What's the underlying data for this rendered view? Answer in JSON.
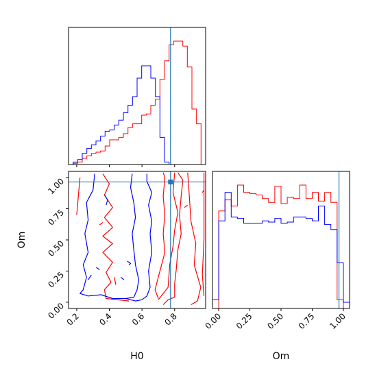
{
  "chart_data": {
    "type": "corner",
    "parameters": [
      "H0",
      "Om"
    ],
    "truth": {
      "H0": 0.775,
      "Om": 0.965
    },
    "colors": {
      "run_red": "#ff0000",
      "run_blue": "#0000ff",
      "truth": "#1f77b4"
    },
    "axes": {
      "H0": {
        "label": "H0",
        "range": [
          0.15,
          0.99
        ],
        "ticks": [
          "0.2",
          "0.4",
          "0.6",
          "0.8"
        ],
        "tick_values": [
          0.2,
          0.4,
          0.6,
          0.8
        ]
      },
      "Om": {
        "label": "Om",
        "range": [
          -0.05,
          1.05
        ],
        "ticks": [
          "0.00",
          "0.25",
          "0.50",
          "0.75",
          "1.00"
        ],
        "tick_values": [
          0.0,
          0.25,
          0.5,
          0.75,
          1.0
        ]
      }
    },
    "hist_H0": {
      "bin_width": 0.028,
      "bin_centers": [
        0.164,
        0.192,
        0.22,
        0.248,
        0.276,
        0.304,
        0.332,
        0.36,
        0.388,
        0.416,
        0.444,
        0.472,
        0.5,
        0.528,
        0.556,
        0.584,
        0.612,
        0.64,
        0.668,
        0.696,
        0.724,
        0.752,
        0.78,
        0.808,
        0.836,
        0.864,
        0.892,
        0.92,
        0.948,
        0.976
      ],
      "series": [
        {
          "color": "#ff0000",
          "values": [
            0,
            0.01,
            0.02,
            0.05,
            0.07,
            0.09,
            0.1,
            0.11,
            0.15,
            0.2,
            0.2,
            0.22,
            0.25,
            0.3,
            0.33,
            0.33,
            0.4,
            0.41,
            0.48,
            0.53,
            0.69,
            0.84,
            0.97,
            1.0,
            1.0,
            0.96,
            0.79,
            0.45,
            0.33,
            0
          ]
        },
        {
          "color": "#0000ff",
          "values": [
            0,
            0.02,
            0.04,
            0.09,
            0.13,
            0.16,
            0.19,
            0.23,
            0.27,
            0.28,
            0.32,
            0.36,
            0.42,
            0.48,
            0.55,
            0.7,
            0.8,
            0.8,
            0.7,
            0.55,
            0.22,
            0.02,
            0,
            0,
            0,
            0,
            0,
            0,
            0,
            0
          ]
        }
      ]
    },
    "hist_Om": {
      "bin_width": 0.05,
      "bin_centers": [
        -0.025,
        0.025,
        0.075,
        0.125,
        0.175,
        0.225,
        0.275,
        0.325,
        0.375,
        0.425,
        0.475,
        0.525,
        0.575,
        0.625,
        0.675,
        0.725,
        0.775,
        0.825,
        0.875,
        0.925,
        0.975,
        1.025
      ],
      "series": [
        {
          "color": "#ff0000",
          "values": [
            0,
            0.79,
            0.88,
            0.83,
            1.0,
            0.94,
            0.93,
            0.92,
            0.89,
            0.86,
            0.99,
            0.85,
            0.9,
            0.89,
            1.0,
            0.89,
            0.94,
            0.87,
            0.94,
            0.86,
            0.07,
            0
          ]
        },
        {
          "color": "#0000ff",
          "values": [
            0.07,
            0.71,
            0.94,
            0.74,
            0.73,
            0.69,
            0.69,
            0.69,
            0.71,
            0.7,
            0.73,
            0.69,
            0.7,
            0.74,
            0.74,
            0.73,
            0.71,
            0.83,
            0.68,
            0.64,
            0.37,
            0.05
          ]
        }
      ]
    },
    "contours": [
      {
        "color": "#ff0000",
        "paths": [
          [
            [
              0.73,
              -0.02
            ],
            [
              0.76,
              0.02
            ],
            [
              0.8,
              0.04
            ],
            [
              0.8,
              0.15
            ],
            [
              0.81,
              0.26
            ],
            [
              0.82,
              0.42
            ],
            [
              0.84,
              0.55
            ],
            [
              0.83,
              0.7
            ],
            [
              0.84,
              0.85
            ],
            [
              0.85,
              0.98
            ],
            [
              0.82,
              1.04
            ]
          ],
          [
            [
              0.8,
              1.04
            ],
            [
              0.79,
              0.88
            ],
            [
              0.82,
              0.72
            ],
            [
              0.8,
              0.58
            ],
            [
              0.79,
              0.45
            ],
            [
              0.77,
              0.3
            ],
            [
              0.76,
              0.12
            ],
            [
              0.7,
              0.02
            ]
          ],
          [
            [
              0.7,
              0.03
            ],
            [
              0.68,
              0.1
            ],
            [
              0.71,
              0.25
            ],
            [
              0.74,
              0.4
            ],
            [
              0.73,
              0.55
            ],
            [
              0.74,
              0.7
            ],
            [
              0.73,
              0.85
            ],
            [
              0.74,
              1.0
            ],
            [
              0.73,
              1.04
            ]
          ],
          [
            [
              0.88,
              1.04
            ],
            [
              0.89,
              0.85
            ],
            [
              0.9,
              0.65
            ],
            [
              0.93,
              0.47
            ],
            [
              0.92,
              0.3
            ],
            [
              0.96,
              0.12
            ],
            [
              0.94,
              0.01
            ],
            [
              0.9,
              -0.02
            ]
          ],
          [
            [
              0.98,
              0.05
            ],
            [
              0.97,
              0.22
            ],
            [
              0.98,
              0.5
            ],
            [
              0.98,
              1.04
            ]
          ],
          [
            [
              0.22,
              1.0
            ],
            [
              0.2,
              0.7
            ]
          ],
          [
            [
              0.36,
              1.03
            ],
            [
              0.4,
              0.95
            ],
            [
              0.37,
              0.86
            ],
            [
              0.42,
              0.76
            ],
            [
              0.37,
              0.68
            ],
            [
              0.42,
              0.6
            ],
            [
              0.36,
              0.53
            ],
            [
              0.42,
              0.47
            ],
            [
              0.36,
              0.4
            ],
            [
              0.42,
              0.32
            ],
            [
              0.38,
              0.24
            ],
            [
              0.41,
              0.16
            ],
            [
              0.37,
              0.1
            ],
            [
              0.38,
              0.03
            ],
            [
              0.45,
              0.02
            ],
            [
              0.52,
              0.01
            ]
          ],
          [
            [
              0.43,
              0.2
            ],
            [
              0.44,
              0.14
            ]
          ],
          [
            [
              0.34,
              0.62
            ],
            [
              0.36,
              0.64
            ]
          ],
          [
            [
              0.86,
              0.76
            ],
            [
              0.88,
              0.78
            ]
          ],
          [
            [
              0.97,
              0.88
            ],
            [
              0.98,
              0.9
            ]
          ]
        ]
      },
      {
        "color": "#0000ff",
        "paths": [
          [
            [
              0.31,
              1.03
            ],
            [
              0.3,
              0.9
            ],
            [
              0.26,
              0.8
            ],
            [
              0.27,
              0.66
            ],
            [
              0.25,
              0.55
            ],
            [
              0.27,
              0.4
            ],
            [
              0.24,
              0.3
            ],
            [
              0.26,
              0.2
            ],
            [
              0.24,
              0.1
            ],
            [
              0.22,
              0.07
            ],
            [
              0.27,
              0.05
            ],
            [
              0.35,
              0.06
            ],
            [
              0.42,
              0.03
            ],
            [
              0.5,
              0.03
            ],
            [
              0.56,
              0.01
            ],
            [
              0.6,
              0.02
            ],
            [
              0.63,
              0.05
            ],
            [
              0.65,
              0.12
            ],
            [
              0.64,
              0.25
            ],
            [
              0.66,
              0.4
            ],
            [
              0.65,
              0.55
            ],
            [
              0.66,
              0.65
            ],
            [
              0.64,
              0.78
            ],
            [
              0.66,
              0.88
            ],
            [
              0.63,
              0.97
            ],
            [
              0.63,
              1.03
            ]
          ],
          [
            [
              0.54,
              1.03
            ],
            [
              0.53,
              0.92
            ],
            [
              0.55,
              0.8
            ],
            [
              0.56,
              0.68
            ],
            [
              0.54,
              0.55
            ],
            [
              0.55,
              0.42
            ],
            [
              0.56,
              0.3
            ],
            [
              0.58,
              0.18
            ],
            [
              0.57,
              0.1
            ],
            [
              0.55,
              0.04
            ],
            [
              0.5,
              0.03
            ]
          ],
          [
            [
              0.37,
              0.86
            ],
            [
              0.39,
              0.82
            ],
            [
              0.38,
              0.78
            ]
          ],
          [
            [
              0.51,
              0.33
            ],
            [
              0.53,
              0.31
            ],
            [
              0.52,
              0.3
            ]
          ],
          [
            [
              0.47,
              0.2
            ],
            [
              0.49,
              0.18
            ]
          ],
          [
            [
              0.29,
              0.22
            ],
            [
              0.27,
              0.18
            ]
          ],
          [
            [
              0.32,
              0.28
            ],
            [
              0.34,
              0.26
            ]
          ]
        ]
      }
    ]
  }
}
